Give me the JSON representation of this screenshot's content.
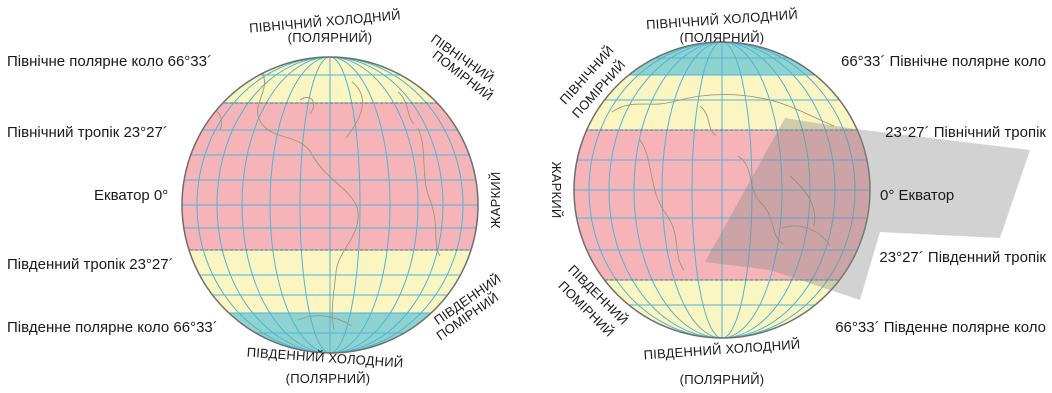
{
  "left_globe": {
    "lines": {
      "north_polar_circle": "Північне полярне коло 66°33´",
      "north_tropic": "Північний тропік 23°27´",
      "equator": "Екватор 0°",
      "south_tropic": "Південний тропік 23°27´",
      "south_polar_circle": "Південне полярне коло 66°33´"
    },
    "zones": {
      "north_cold_1": "ПІВНІЧНИЙ ХОЛОДНИЙ",
      "north_cold_2": "(ПОЛЯРНИЙ)",
      "north_temperate_1": "ПІВНІЧНИЙ",
      "north_temperate_2": "ПОМІРНИЙ",
      "hot": "ЖАРКИЙ",
      "south_temperate_1": "ПІВДЕННИЙ",
      "south_temperate_2": "ПОМІРНИЙ",
      "south_cold_1": "ПІВДЕННИЙ ХОЛОДНИЙ",
      "south_cold_2": "(ПОЛЯРНИЙ)"
    }
  },
  "right_globe": {
    "lines": {
      "north_polar_circle": "66°33´ Північне полярне коло",
      "north_tropic": "23°27´ Північний тропік",
      "equator": "0° Екватор",
      "south_tropic": "23°27´ Південний тропік",
      "south_polar_circle": "66°33´ Південне полярне коло"
    },
    "zones": {
      "north_cold_1": "ПІВНІЧНИЙ ХОЛОДНИЙ",
      "north_cold_2": "(ПОЛЯРНИЙ)",
      "north_temperate_1": "ПІВНІЧНИЙ",
      "north_temperate_2": "ПОМІРНИЙ",
      "hot": "ЖАРКИЙ",
      "south_temperate_1": "ПІВДЕННИЙ",
      "south_temperate_2": "ПОМІРНИЙ",
      "south_cold_1": "ПІВДЕННИЙ ХОЛОДНИЙ",
      "south_cold_2": "(ПОЛЯРНИЙ)"
    }
  },
  "colors": {
    "temperate": "#fbf5c2",
    "hot": "#f6b3b8",
    "cold": "#8ed3cf",
    "grid": "#4fb4d6",
    "coast": "#9a9a7a",
    "outline": "#6e6e6e"
  }
}
